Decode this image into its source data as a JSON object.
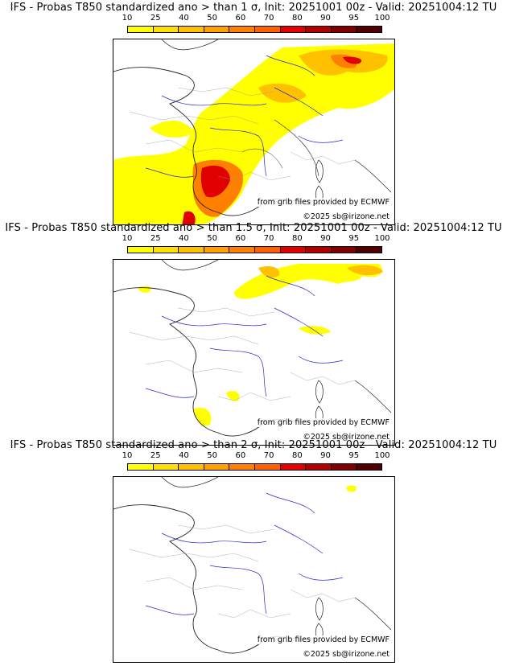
{
  "colorbar": {
    "ticks": [
      "10",
      "25",
      "40",
      "50",
      "60",
      "70",
      "80",
      "90",
      "95",
      "100"
    ],
    "colors": [
      "#ffff00",
      "#ffe000",
      "#ffc000",
      "#ffa000",
      "#ff8000",
      "#ff6000",
      "#e00000",
      "#b00000",
      "#800000",
      "#500000"
    ]
  },
  "panels": [
    {
      "title": "IFS - Probas T850  standardized ano > than 1 σ, Init: 20251001 00z - Valid: 20251004:12 TU",
      "source_credit": "from grib files provided by ECMWF",
      "copyright": "©2025 sb@irizone.net"
    },
    {
      "title": "IFS - Probas T850  standardized ano > than 1.5 σ, Init: 20251001 00z - Valid: 20251004:12 TU",
      "source_credit": "from grib files provided by ECMWF",
      "copyright": "©2025 sb@irizone.net"
    },
    {
      "title": "IFS - Probas T850  standardized ano > than 2 σ, Init: 20251001 00z - Valid: 20251004:12 TU",
      "source_credit": "from grib files provided by ECMWF",
      "copyright": "©2025 sb@irizone.net"
    }
  ]
}
